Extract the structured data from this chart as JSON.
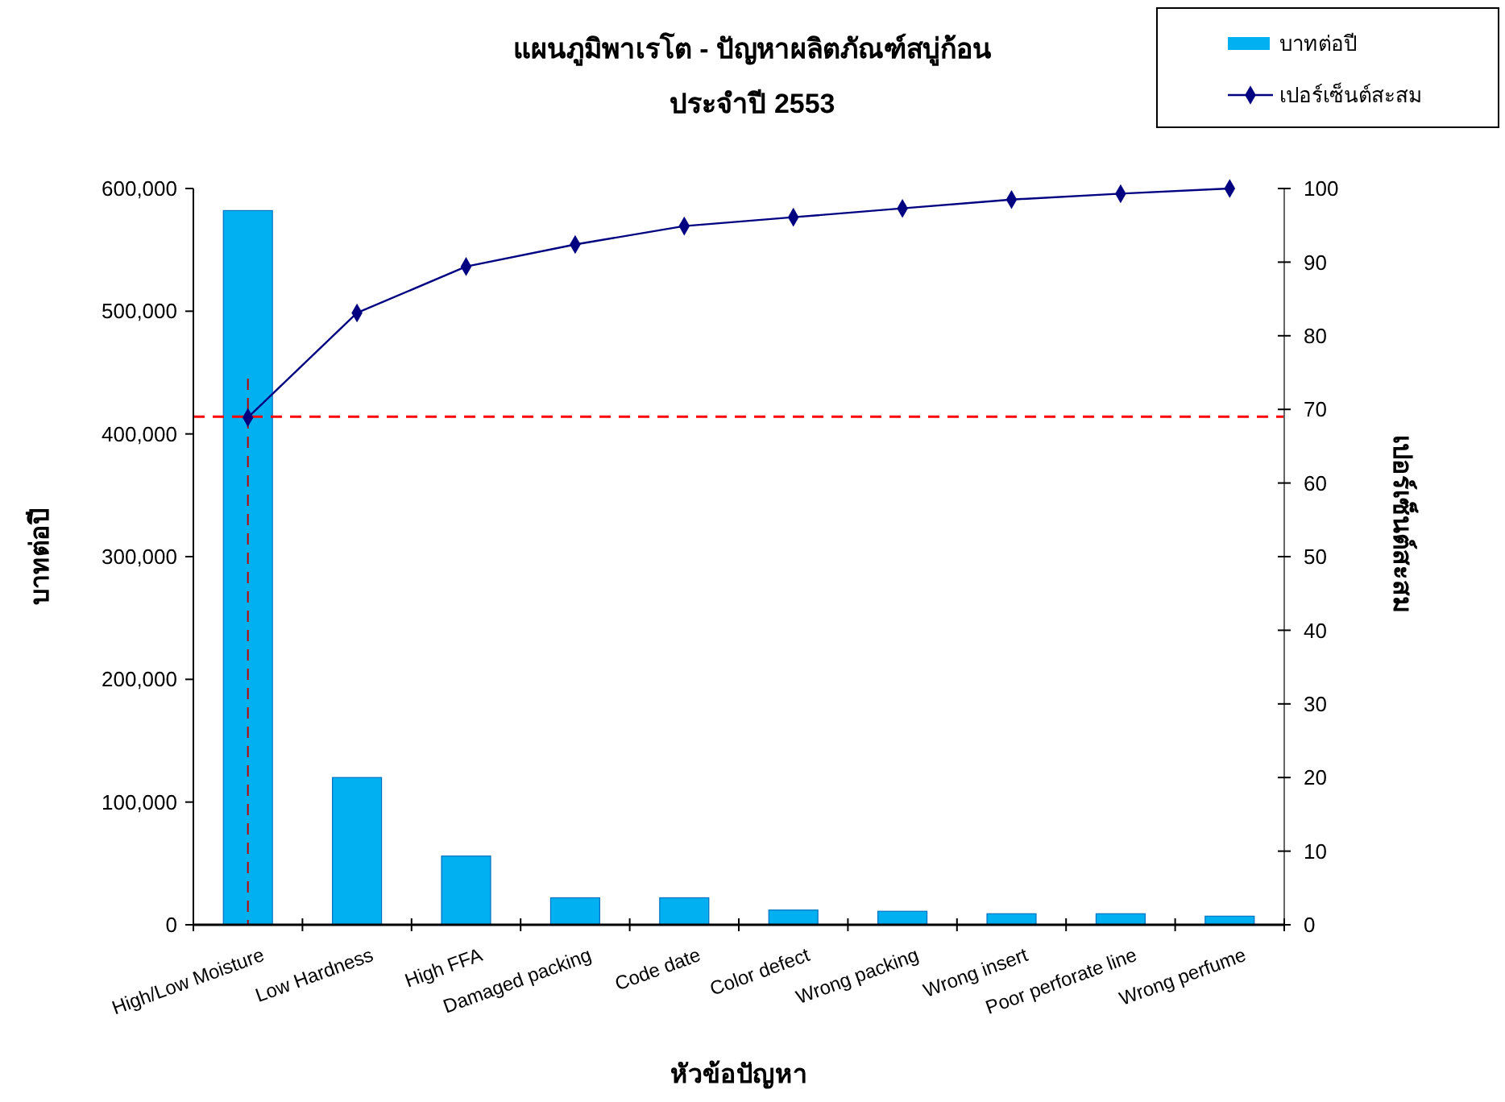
{
  "chart_data": {
    "type": "bar",
    "title": "แผนภูมิพาเรโต  - ปัญหาผลิตภัณฑ์สบู่ก้อน",
    "subtitle": "ประจำปี 2553",
    "xlabel": "หัวข้อปัญหา",
    "ylabel": "บาทต่อปี",
    "y2label": "เปอร์เซ็นต์สะสม",
    "categories": [
      "High/Low Moisture",
      "Low Hardness",
      "High FFA",
      "Damaged packing",
      "Code date",
      "Color defect",
      "Wrong packing",
      "Wrong insert",
      "Poor perforate line",
      "Wrong perfume"
    ],
    "series": [
      {
        "name": "บาทต่อปี",
        "color": "#00b0f0",
        "values": [
          582000,
          120000,
          56000,
          22000,
          22000,
          12000,
          11000,
          9000,
          9000,
          7000
        ]
      },
      {
        "name": "เปอร์เซ็นต์สะสม",
        "type": "line",
        "axis": "y2",
        "color": "#000080",
        "values": [
          68.9,
          83.1,
          89.4,
          92.4,
          94.9,
          96.1,
          97.3,
          98.5,
          99.3,
          100
        ]
      }
    ],
    "ylim": [
      0,
      600000
    ],
    "yticks": [
      {
        "value": 0,
        "label": "0"
      },
      {
        "value": 100000,
        "label": "100,000"
      },
      {
        "value": 200000,
        "label": "200,000"
      },
      {
        "value": 300000,
        "label": "300,000"
      },
      {
        "value": 400000,
        "label": "400,000"
      },
      {
        "value": 500000,
        "label": "500,000"
      },
      {
        "value": 600000,
        "label": "600,000"
      }
    ],
    "y2lim": [
      0,
      100
    ],
    "y2ticks": [
      0,
      10,
      20,
      30,
      40,
      50,
      60,
      70,
      80,
      90,
      100
    ],
    "ref_lines": [
      {
        "axis": "y2",
        "value": 69,
        "color": "#ff0000",
        "line_style": "dashed"
      },
      {
        "axis": "x",
        "value": "High/Low Moisture",
        "color": "#c00000",
        "line_style": "dashed"
      }
    ],
    "marker": "diamond",
    "legend": "top right",
    "grid": false
  }
}
